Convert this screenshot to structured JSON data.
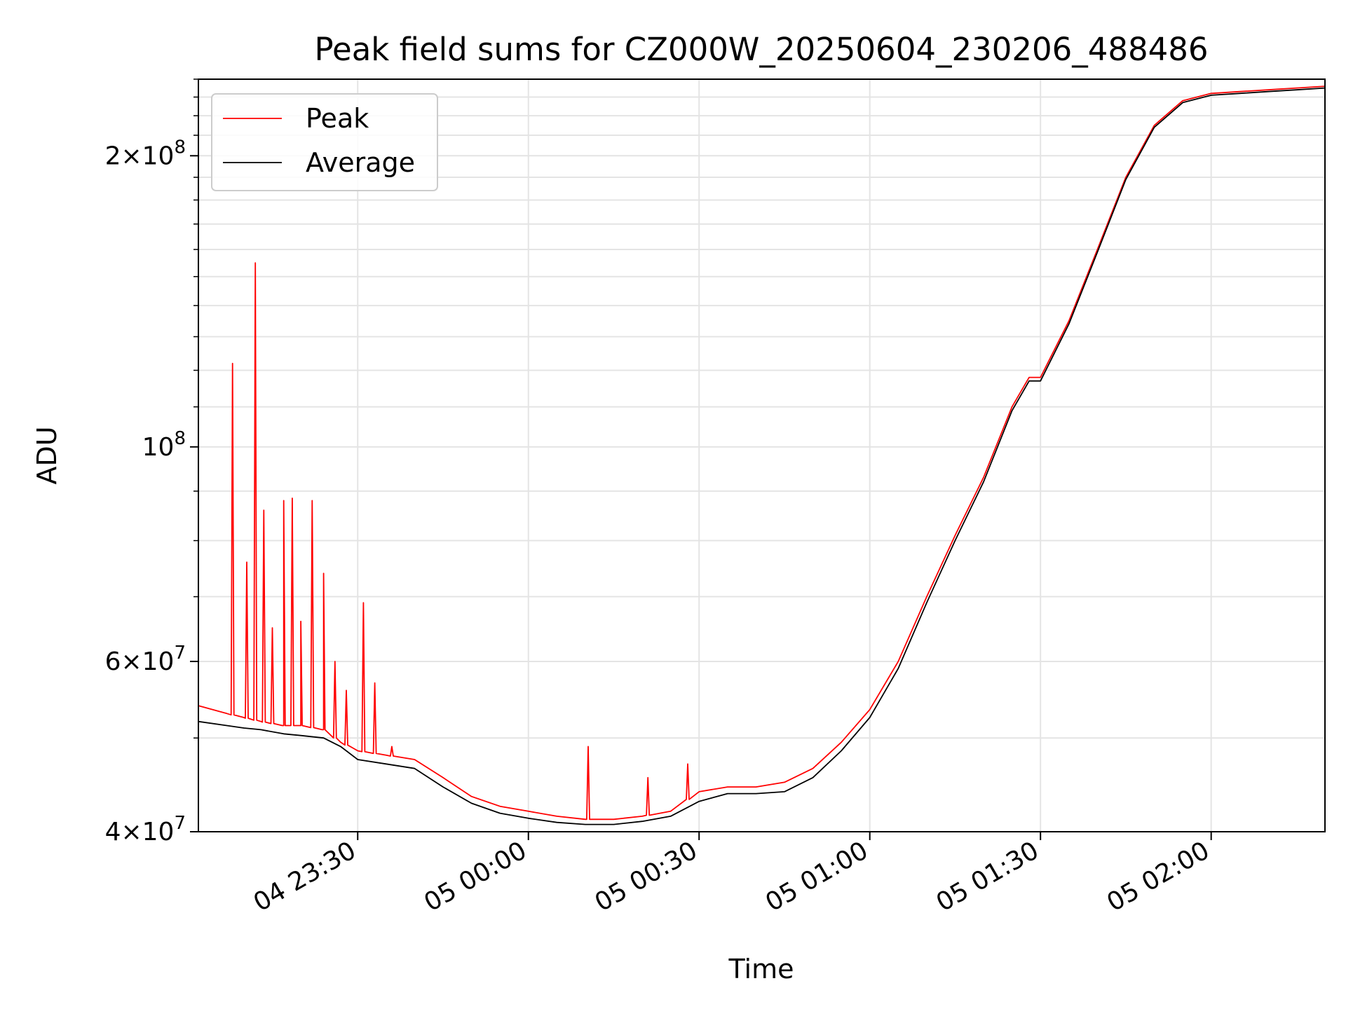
{
  "chart_data": {
    "type": "line",
    "title": "Peak field sums for CZ000W_20250604_230206_488486",
    "xlabel": "Time",
    "ylabel": "ADU",
    "yscale": "log",
    "ylim": [
      40000000,
      240000000
    ],
    "xlim": [
      "04 23:02",
      "05 02:20"
    ],
    "grid": true,
    "legend": "top-left",
    "x_ticks": [
      "04 23:30",
      "05 00:00",
      "05 00:30",
      "05 01:00",
      "05 01:30",
      "05 02:00"
    ],
    "y_ticks": [
      {
        "value": 40000000,
        "mantissa": "4",
        "exponent": "7"
      },
      {
        "value": 60000000,
        "mantissa": "6",
        "exponent": "7"
      },
      {
        "value": 100000000,
        "mantissa": "",
        "exponent": "8"
      },
      {
        "value": 200000000,
        "mantissa": "2",
        "exponent": "8"
      }
    ],
    "series": [
      {
        "name": "Peak",
        "color": "#ff0000",
        "x": [
          "04 23:02",
          "04 23:07",
          "04 23:10",
          "04 23:13",
          "04 23:17",
          "04 23:20",
          "04 23:24",
          "04 23:27",
          "04 23:30",
          "04 23:35",
          "04 23:40",
          "04 23:45",
          "04 23:50",
          "04 23:55",
          "05 00:00",
          "05 00:05",
          "05 00:10",
          "05 00:15",
          "05 00:20",
          "05 00:25",
          "05 00:30",
          "05 00:35",
          "05 00:40",
          "05 00:45",
          "05 00:50",
          "05 00:55",
          "05 01:00",
          "05 01:05",
          "05 01:10",
          "05 01:15",
          "05 01:20",
          "05 01:25",
          "05 01:28",
          "05 01:30",
          "05 01:35",
          "05 01:40",
          "05 01:45",
          "05 01:50",
          "05 01:55",
          "05 02:00",
          "05 02:05",
          "05 02:10",
          "05 02:15",
          "05 02:20"
        ],
        "values": [
          54000000,
          53000000,
          52500000,
          52000000,
          51500000,
          51500000,
          51000000,
          49500000,
          48500000,
          48000000,
          47500000,
          45500000,
          43500000,
          42500000,
          42000000,
          41500000,
          41200000,
          41200000,
          41500000,
          42000000,
          44000000,
          44500000,
          44500000,
          45000000,
          46500000,
          49500000,
          53500000,
          60000000,
          70000000,
          81000000,
          93000000,
          110000000,
          118000000,
          118000000,
          135000000,
          160000000,
          190000000,
          215000000,
          228000000,
          232000000,
          233000000,
          234000000,
          235000000,
          236000000
        ]
      },
      {
        "name": "Average",
        "color": "#000000",
        "x": [
          "04 23:02",
          "04 23:07",
          "04 23:10",
          "04 23:13",
          "04 23:17",
          "04 23:20",
          "04 23:24",
          "04 23:27",
          "04 23:30",
          "04 23:35",
          "04 23:40",
          "04 23:45",
          "04 23:50",
          "04 23:55",
          "05 00:00",
          "05 00:05",
          "05 00:10",
          "05 00:15",
          "05 00:20",
          "05 00:25",
          "05 00:30",
          "05 00:35",
          "05 00:40",
          "05 00:45",
          "05 00:50",
          "05 00:55",
          "05 01:00",
          "05 01:05",
          "05 01:10",
          "05 01:15",
          "05 01:20",
          "05 01:25",
          "05 01:28",
          "05 01:30",
          "05 01:35",
          "05 01:40",
          "05 01:45",
          "05 01:50",
          "05 01:55",
          "05 02:00",
          "05 02:05",
          "05 02:10",
          "05 02:15",
          "05 02:20"
        ],
        "values": [
          52000000,
          51500000,
          51200000,
          51000000,
          50500000,
          50300000,
          50000000,
          49000000,
          47500000,
          47000000,
          46500000,
          44500000,
          42800000,
          41800000,
          41300000,
          40900000,
          40700000,
          40700000,
          41000000,
          41500000,
          43000000,
          43800000,
          43800000,
          44000000,
          45500000,
          48500000,
          52500000,
          59000000,
          69000000,
          80000000,
          92000000,
          109000000,
          117000000,
          117000000,
          134000000,
          159000000,
          189000000,
          214000000,
          227000000,
          231000000,
          232000000,
          233000000,
          234000000,
          235000000
        ]
      }
    ],
    "spikes": {
      "series": "Peak",
      "x": [
        "04 23:08",
        "04 23:10:30",
        "04 23:12",
        "04 23:13:30",
        "04 23:15",
        "04 23:17",
        "04 23:18:30",
        "04 23:20",
        "04 23:22",
        "04 23:24",
        "04 23:26",
        "04 23:28",
        "04 23:31",
        "04 23:33",
        "04 23:36",
        "05 00:10:30",
        "05 00:21",
        "05 00:28"
      ],
      "values": [
        122000000,
        76000000,
        155000000,
        86000000,
        65000000,
        88000000,
        88500000,
        66000000,
        88000000,
        74000000,
        60000000,
        56000000,
        69000000,
        57000000,
        49000000,
        49000000,
        45500000,
        47000000
      ]
    }
  }
}
